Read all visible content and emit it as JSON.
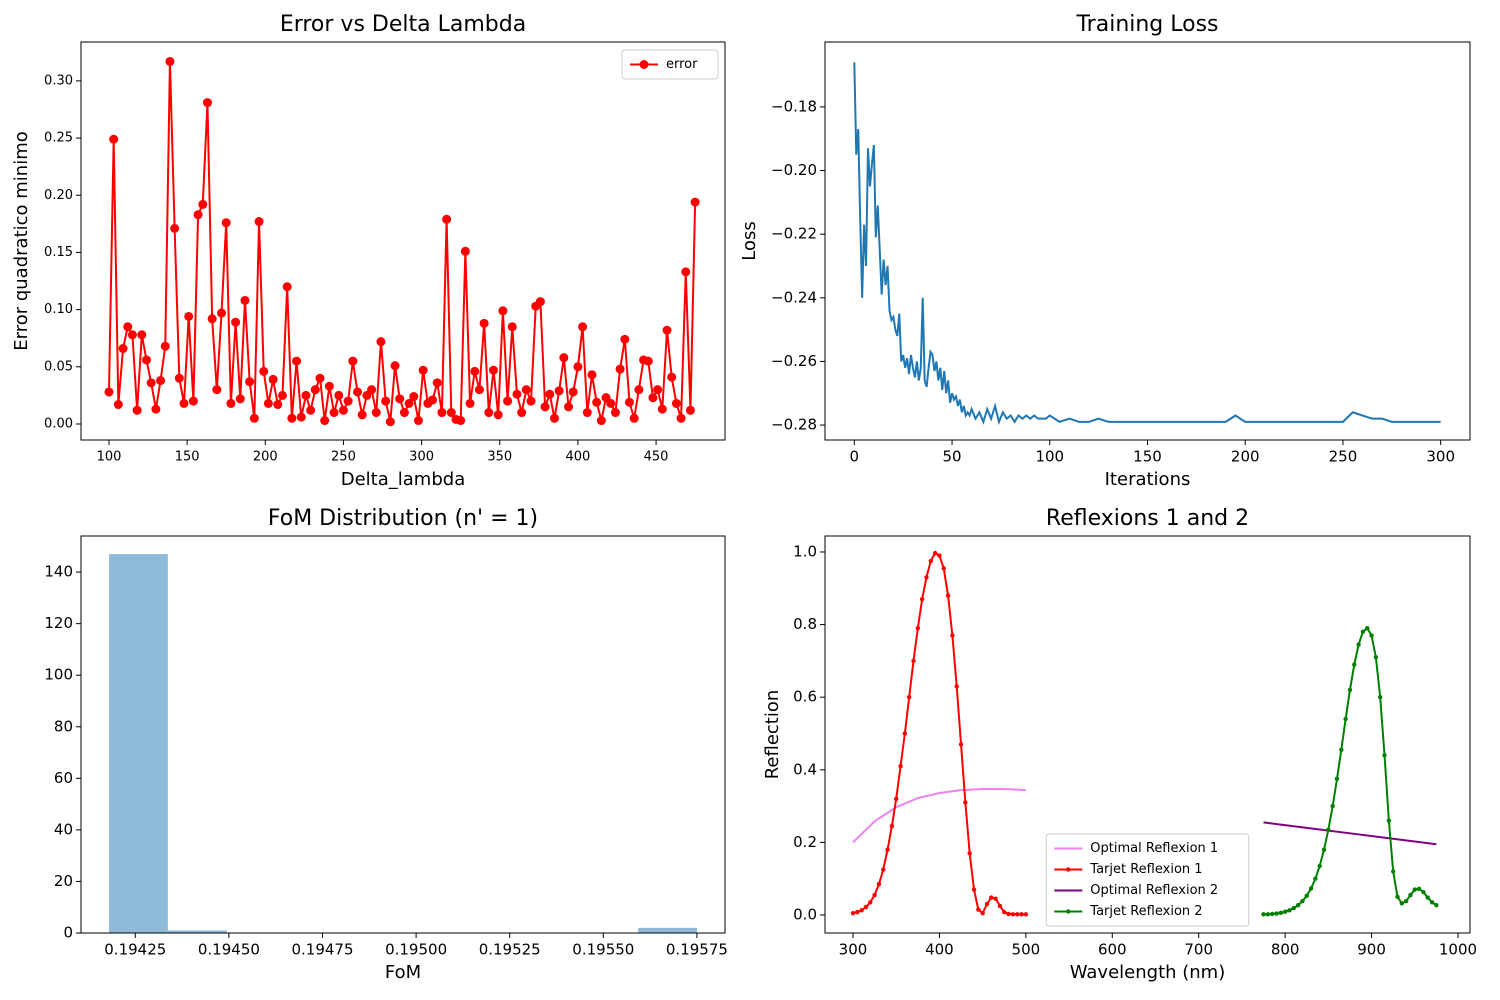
{
  "chart_data": [
    {
      "type": "line",
      "title": "Error vs Delta Lambda",
      "x_label": "Delta_lambda",
      "y_label": "Error quadratico minimo",
      "legend": "upper right",
      "x": [
        100,
        103,
        106,
        109,
        112,
        115,
        118,
        121,
        124,
        127,
        130,
        133,
        136,
        139,
        142,
        145,
        148,
        151,
        154,
        157,
        160,
        163,
        166,
        169,
        172,
        175,
        178,
        181,
        184,
        187,
        190,
        193,
        196,
        199,
        202,
        205,
        208,
        211,
        214,
        217,
        220,
        223,
        226,
        229,
        232,
        235,
        238,
        241,
        244,
        247,
        250,
        253,
        256,
        259,
        262,
        265,
        268,
        271,
        274,
        277,
        280,
        283,
        286,
        289,
        292,
        295,
        298,
        301,
        304,
        307,
        310,
        313,
        316,
        319,
        322,
        325,
        328,
        331,
        334,
        337,
        340,
        343,
        346,
        349,
        352,
        355,
        358,
        361,
        364,
        367,
        370,
        373,
        376,
        379,
        382,
        385,
        388,
        391,
        394,
        397,
        400,
        403,
        406,
        409,
        412,
        415,
        418,
        421,
        424,
        427,
        430,
        433,
        436,
        439,
        442,
        445,
        448,
        451,
        454,
        457,
        460,
        463,
        466,
        469,
        472,
        475
      ],
      "series": [
        {
          "name": "error",
          "color": "#ff0000",
          "marker": "o",
          "values": [
            0.028,
            0.249,
            0.017,
            0.066,
            0.085,
            0.078,
            0.012,
            0.078,
            0.056,
            0.036,
            0.013,
            0.038,
            0.068,
            0.317,
            0.171,
            0.04,
            0.018,
            0.094,
            0.02,
            0.183,
            0.192,
            0.281,
            0.092,
            0.03,
            0.097,
            0.176,
            0.018,
            0.089,
            0.022,
            0.108,
            0.037,
            0.005,
            0.177,
            0.046,
            0.018,
            0.039,
            0.017,
            0.025,
            0.12,
            0.005,
            0.055,
            0.006,
            0.025,
            0.012,
            0.03,
            0.04,
            0.003,
            0.033,
            0.01,
            0.025,
            0.012,
            0.02,
            0.055,
            0.028,
            0.008,
            0.025,
            0.03,
            0.01,
            0.072,
            0.02,
            0.002,
            0.051,
            0.022,
            0.01,
            0.018,
            0.024,
            0.003,
            0.047,
            0.018,
            0.021,
            0.036,
            0.01,
            0.179,
            0.01,
            0.004,
            0.003,
            0.151,
            0.018,
            0.046,
            0.03,
            0.088,
            0.01,
            0.047,
            0.008,
            0.099,
            0.02,
            0.085,
            0.026,
            0.01,
            0.03,
            0.02,
            0.103,
            0.107,
            0.015,
            0.026,
            0.005,
            0.029,
            0.058,
            0.015,
            0.028,
            0.05,
            0.085,
            0.01,
            0.043,
            0.019,
            0.003,
            0.023,
            0.018,
            0.01,
            0.048,
            0.074,
            0.019,
            0.005,
            0.03,
            0.056,
            0.055,
            0.023,
            0.03,
            0.013,
            0.082,
            0.041,
            0.018,
            0.005,
            0.133,
            0.012,
            0.194
          ]
        }
      ],
      "xlim": [
        82.1,
        494.1
      ],
      "xticks": [
        100,
        150,
        200,
        250,
        300,
        350,
        400,
        450
      ],
      "ylim": [
        -0.014,
        0.334
      ],
      "yticks": [
        {
          "value": 0,
          "label": "0.00"
        },
        0.05,
        {
          "value": 0.1,
          "label": "0.10"
        },
        0.15,
        {
          "value": 0.2,
          "label": "0.20"
        },
        0.25,
        {
          "value": 0.3,
          "label": "0.30"
        }
      ]
    },
    {
      "type": "line",
      "title": "Training Loss",
      "x_label": "Iterations",
      "y_label": "Loss",
      "x": [
        0,
        1,
        2,
        3,
        4,
        5,
        6,
        7,
        8,
        9,
        10,
        11,
        12,
        13,
        14,
        15,
        16,
        17,
        18,
        19,
        20,
        21,
        22,
        23,
        24,
        25,
        26,
        27,
        28,
        29,
        30,
        31,
        32,
        33,
        34,
        35,
        36,
        37,
        38,
        39,
        40,
        41,
        42,
        43,
        44,
        45,
        46,
        47,
        48,
        49,
        50,
        51,
        52,
        53,
        54,
        55,
        56,
        57,
        58,
        59,
        60,
        62,
        64,
        66,
        68,
        70,
        72,
        74,
        76,
        78,
        80,
        82,
        84,
        86,
        88,
        90,
        92,
        94,
        96,
        98,
        100,
        105,
        110,
        115,
        120,
        125,
        130,
        135,
        140,
        145,
        150,
        155,
        160,
        165,
        170,
        175,
        180,
        185,
        190,
        195,
        200,
        205,
        210,
        215,
        220,
        225,
        230,
        235,
        240,
        245,
        250,
        255,
        260,
        265,
        270,
        275,
        280,
        285,
        290,
        295,
        300
      ],
      "series": [
        {
          "color": "#1f77b4",
          "values": [
            -0.166,
            -0.195,
            -0.187,
            -0.215,
            -0.24,
            -0.217,
            -0.23,
            -0.193,
            -0.205,
            -0.198,
            -0.192,
            -0.221,
            -0.211,
            -0.225,
            -0.239,
            -0.228,
            -0.236,
            -0.23,
            -0.244,
            -0.247,
            -0.246,
            -0.25,
            -0.252,
            -0.245,
            -0.26,
            -0.258,
            -0.262,
            -0.259,
            -0.264,
            -0.258,
            -0.262,
            -0.265,
            -0.26,
            -0.266,
            -0.262,
            -0.24,
            -0.266,
            -0.268,
            -0.262,
            -0.257,
            -0.258,
            -0.263,
            -0.26,
            -0.266,
            -0.262,
            -0.269,
            -0.263,
            -0.27,
            -0.266,
            -0.273,
            -0.27,
            -0.272,
            -0.271,
            -0.274,
            -0.272,
            -0.276,
            -0.274,
            -0.277,
            -0.276,
            -0.277,
            -0.275,
            -0.278,
            -0.276,
            -0.279,
            -0.275,
            -0.278,
            -0.274,
            -0.279,
            -0.276,
            -0.278,
            -0.277,
            -0.279,
            -0.277,
            -0.278,
            -0.277,
            -0.278,
            -0.277,
            -0.278,
            -0.278,
            -0.278,
            -0.277,
            -0.279,
            -0.278,
            -0.279,
            -0.279,
            -0.278,
            -0.279,
            -0.279,
            -0.279,
            -0.279,
            -0.279,
            -0.279,
            -0.279,
            -0.279,
            -0.279,
            -0.279,
            -0.279,
            -0.279,
            -0.279,
            -0.277,
            -0.279,
            -0.279,
            -0.279,
            -0.279,
            -0.279,
            -0.279,
            -0.279,
            -0.279,
            -0.279,
            -0.279,
            -0.279,
            -0.276,
            -0.277,
            -0.278,
            -0.278,
            -0.279,
            -0.279,
            -0.279,
            -0.279,
            -0.279,
            -0.279
          ]
        }
      ],
      "xlim": [
        -15,
        315
      ],
      "xticks": [
        0,
        50,
        100,
        150,
        200,
        250,
        300
      ],
      "ylim": [
        -0.2847,
        -0.1596
      ],
      "yticks": [
        {
          "value": -0.28,
          "label": "−0.28"
        },
        {
          "value": -0.26,
          "label": "−0.26"
        },
        {
          "value": -0.24,
          "label": "−0.24"
        },
        {
          "value": -0.22,
          "label": "−0.22"
        },
        {
          "value": -0.2,
          "label": "−0.20"
        },
        {
          "value": -0.18,
          "label": "−0.18"
        }
      ]
    },
    {
      "type": "histogram",
      "title": "FoM Distribution (n' = 1)",
      "x_label": "FoM",
      "color": "#8fbbd9",
      "bins": [
        0.19418,
        0.194337,
        0.194494,
        0.194651,
        0.194808,
        0.194965,
        0.195122,
        0.195279,
        0.195436,
        0.195593,
        0.19575
      ],
      "values": [
        147,
        1,
        0,
        0,
        0,
        0,
        0,
        0,
        0,
        2
      ],
      "xlim": [
        0.194105,
        0.195825
      ],
      "xticks": [
        0.19425,
        {
          "value": 0.1945,
          "label": "0.19450"
        },
        0.19475,
        {
          "value": 0.195,
          "label": "0.19500"
        },
        0.19525,
        {
          "value": 0.1955,
          "label": "0.19550"
        },
        0.19575
      ],
      "ylim": [
        0,
        154
      ],
      "yticks": [
        0,
        20,
        40,
        60,
        80,
        100,
        120,
        140
      ]
    },
    {
      "type": "line",
      "title": "Reflexions 1 and 2",
      "x_label": "Wavelength (nm)",
      "y_label": "Reflection",
      "legend": "lower center",
      "series": [
        {
          "name": "Optimal Reflexion 1",
          "color": "#ee82ee",
          "x": [
            300,
            325,
            350,
            375,
            400,
            425,
            450,
            475,
            500
          ],
          "values": [
            0.2,
            0.258,
            0.297,
            0.322,
            0.336,
            0.344,
            0.347,
            0.347,
            0.344
          ]
        },
        {
          "name": "Tarjet Reflexion 1",
          "color": "#ff0000",
          "marker": ".",
          "x": [
            300,
            305,
            310,
            315,
            320,
            325,
            330,
            335,
            340,
            345,
            350,
            355,
            360,
            365,
            370,
            375,
            380,
            385,
            390,
            395,
            400,
            405,
            410,
            415,
            420,
            425,
            430,
            435,
            440,
            445,
            450,
            455,
            460,
            465,
            470,
            475,
            480,
            485,
            490,
            495,
            500
          ],
          "values": [
            0.005,
            0.008,
            0.013,
            0.022,
            0.035,
            0.055,
            0.085,
            0.125,
            0.18,
            0.245,
            0.32,
            0.41,
            0.5,
            0.6,
            0.7,
            0.79,
            0.87,
            0.93,
            0.975,
            0.997,
            0.99,
            0.955,
            0.88,
            0.77,
            0.63,
            0.47,
            0.31,
            0.17,
            0.07,
            0.015,
            0.005,
            0.03,
            0.048,
            0.045,
            0.025,
            0.008,
            0.003,
            0.002,
            0.002,
            0.002,
            0.002
          ]
        },
        {
          "name": "Optimal Reflexion 2",
          "color": "#800080",
          "x": [
            775,
            825,
            875,
            925,
            975
          ],
          "values": [
            0.255,
            0.24,
            0.225,
            0.21,
            0.195
          ]
        },
        {
          "name": "Tarjet Reflexion 2",
          "color": "#008000",
          "marker": ".",
          "x": [
            775,
            780,
            785,
            790,
            795,
            800,
            805,
            810,
            815,
            820,
            825,
            830,
            835,
            840,
            845,
            850,
            855,
            860,
            865,
            870,
            875,
            880,
            885,
            890,
            895,
            900,
            905,
            910,
            915,
            920,
            925,
            930,
            935,
            940,
            945,
            950,
            955,
            960,
            965,
            970,
            975
          ],
          "values": [
            0.002,
            0.002,
            0.003,
            0.004,
            0.006,
            0.009,
            0.013,
            0.019,
            0.027,
            0.038,
            0.053,
            0.073,
            0.1,
            0.135,
            0.18,
            0.235,
            0.3,
            0.375,
            0.455,
            0.54,
            0.62,
            0.69,
            0.745,
            0.78,
            0.79,
            0.77,
            0.71,
            0.6,
            0.44,
            0.26,
            0.12,
            0.05,
            0.032,
            0.038,
            0.055,
            0.07,
            0.072,
            0.063,
            0.048,
            0.035,
            0.027
          ]
        }
      ],
      "xlim": [
        267.6,
        1013.9
      ],
      "xticks": [
        300,
        400,
        500,
        600,
        700,
        800,
        900,
        1000
      ],
      "ylim": [
        -0.0496,
        1.044
      ],
      "yticks": [
        {
          "value": 0,
          "label": "0.0"
        },
        0.2,
        0.4,
        0.6,
        0.8,
        {
          "value": 1,
          "label": "1.0"
        }
      ]
    }
  ]
}
